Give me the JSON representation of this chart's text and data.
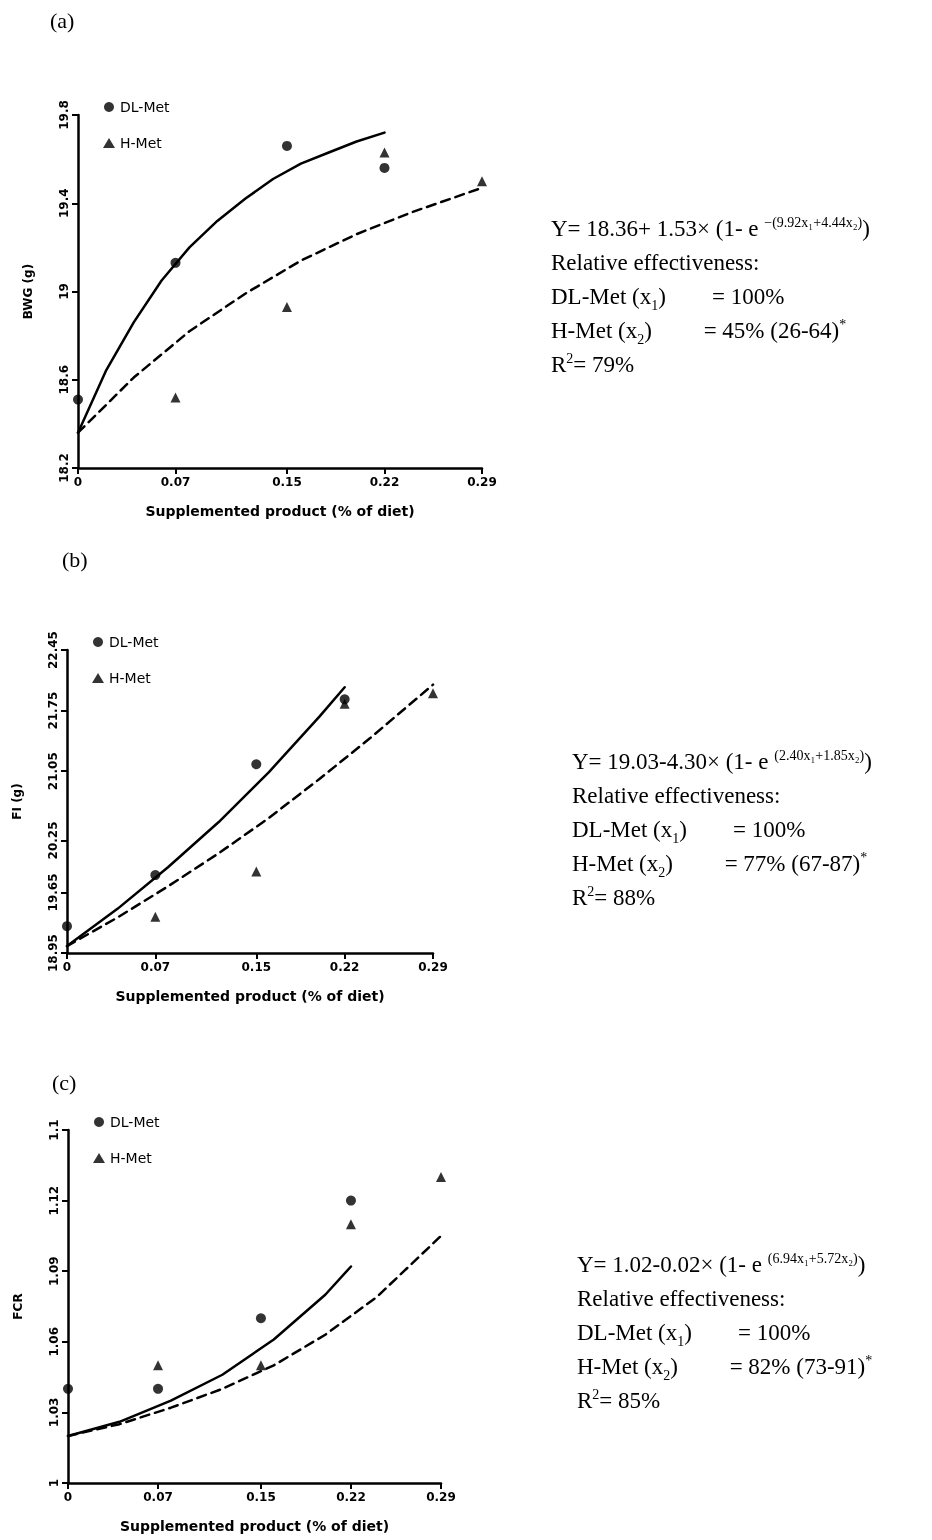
{
  "chart_data": [
    {
      "type": "scatter",
      "title": "(a)",
      "xlabel": "Supplemented product (% of diet)",
      "ylabel": "BWG (g)",
      "xlim": [
        0,
        0.29
      ],
      "xticks": [
        0,
        0.07,
        0.15,
        0.22,
        0.29
      ],
      "ylim": [
        18.2,
        19.8
      ],
      "yticks": [
        18.2,
        18.6,
        19,
        19.4,
        19.8
      ],
      "grid": false,
      "legend": "top left",
      "series": [
        {
          "name": "DL-Met",
          "marker": "circle",
          "color": "#000000",
          "x": [
            0,
            0.07,
            0.15,
            0.22
          ],
          "values": [
            18.51,
            19.13,
            19.66,
            19.56
          ]
        },
        {
          "name": "H-Met",
          "marker": "triangle",
          "color": "#000000",
          "x": [
            0.07,
            0.15,
            0.22,
            0.29
          ],
          "values": [
            18.52,
            18.93,
            19.63,
            19.5
          ]
        },
        {
          "type": "line",
          "line_style": "solid",
          "color": "#000000",
          "x": [
            0,
            0.02,
            0.04,
            0.06,
            0.08,
            0.1,
            0.12,
            0.14,
            0.16,
            0.18,
            0.2,
            0.22
          ],
          "values": [
            18.36,
            18.64,
            18.86,
            19.05,
            19.2,
            19.32,
            19.42,
            19.51,
            19.58,
            19.63,
            19.68,
            19.72
          ]
        },
        {
          "type": "line",
          "line_style": "dashed",
          "color": "#000000",
          "x": [
            0,
            0.04,
            0.08,
            0.12,
            0.16,
            0.2,
            0.24,
            0.29
          ],
          "values": [
            18.36,
            18.61,
            18.82,
            18.99,
            19.14,
            19.26,
            19.36,
            19.47
          ]
        }
      ],
      "annotations": [
        "Y= 18.36+ 1.53× (1- e $^{−(9.92x₁+4.44x₂)}$)",
        "Relative effectiveness:",
        "DL-Met (x$_{1}$)        = 100%",
        "H-Met (x$_{2}$)         = 45% (26-64)$^{*}$",
        "R$^{2}$= 79%"
      ]
    },
    {
      "type": "scatter",
      "title": "(b)",
      "xlabel": "Supplemented product (% of diet)",
      "ylabel": "FI (g)",
      "xlim": [
        0,
        0.29
      ],
      "xticks": [
        0,
        0.07,
        0.15,
        0.22,
        0.29
      ],
      "ylim": [
        18.95,
        22.45
      ],
      "yticks": [
        18.95,
        19.65,
        20.25,
        21.05,
        21.75,
        22.45
      ],
      "grid": false,
      "legend": "top left",
      "series": [
        {
          "name": "DL-Met",
          "marker": "circle",
          "color": "#000000",
          "x": [
            0,
            0.07,
            0.15,
            0.22
          ],
          "values": [
            19.26,
            19.85,
            21.13,
            21.88
          ]
        },
        {
          "name": "H-Met",
          "marker": "triangle",
          "color": "#000000",
          "x": [
            0.07,
            0.15,
            0.22,
            0.29
          ],
          "values": [
            19.37,
            19.89,
            21.83,
            21.95
          ]
        },
        {
          "type": "line",
          "line_style": "solid",
          "color": "#000000",
          "x": [
            0,
            0.04,
            0.08,
            0.12,
            0.16,
            0.2,
            0.22
          ],
          "values": [
            19.03,
            19.46,
            19.94,
            20.46,
            21.04,
            21.68,
            22.02
          ]
        },
        {
          "type": "line",
          "line_style": "dashed",
          "color": "#000000",
          "x": [
            0,
            0.04,
            0.08,
            0.12,
            0.16,
            0.2,
            0.24,
            0.29
          ],
          "values": [
            19.03,
            19.36,
            19.72,
            20.1,
            20.51,
            20.96,
            21.43,
            22.05
          ]
        }
      ],
      "annotations": [
        "Y= 19.03-4.30× (1- e $^{(2.40x₁+1.85x₂)}$)",
        "Relative effectiveness:",
        "DL-Met (x$_{1}$)        = 100%",
        "H-Met (x$_{2}$)         = 77% (67-87)$^{*}$",
        "R$^{2}$= 88%"
      ]
    },
    {
      "type": "scatter",
      "title": "(c)",
      "xlabel": "Supplemented product (% of diet)",
      "ylabel": "FCR",
      "xlim": [
        0,
        0.29
      ],
      "xticks": [
        0,
        0.07,
        0.15,
        0.22,
        0.29
      ],
      "ylim": [
        1,
        1.15
      ],
      "yticks": [
        1,
        1.03,
        1.06,
        1.09,
        1.12,
        {
          "value": 1.15,
          "label": "1.1"
        }
      ],
      "grid": false,
      "legend": "top left",
      "series": [
        {
          "name": "DL-Met",
          "marker": "circle",
          "color": "#000000",
          "x": [
            0,
            0.07,
            0.15,
            0.22
          ],
          "values": [
            1.04,
            1.04,
            1.07,
            1.12
          ]
        },
        {
          "name": "H-Met",
          "marker": "triangle",
          "color": "#000000",
          "x": [
            0.07,
            0.15,
            0.22,
            0.29
          ],
          "values": [
            1.05,
            1.05,
            1.11,
            1.13
          ]
        },
        {
          "type": "line",
          "line_style": "solid",
          "color": "#000000",
          "x": [
            0,
            0.04,
            0.08,
            0.12,
            0.16,
            0.2,
            0.22
          ],
          "values": [
            1.02,
            1.026,
            1.035,
            1.046,
            1.061,
            1.08,
            1.092
          ]
        },
        {
          "type": "line",
          "line_style": "dashed",
          "color": "#000000",
          "x": [
            0,
            0.04,
            0.08,
            0.12,
            0.16,
            0.2,
            0.24,
            0.29
          ],
          "values": [
            1.02,
            1.025,
            1.032,
            1.04,
            1.05,
            1.063,
            1.079,
            1.105
          ]
        }
      ],
      "annotations": [
        "Y= 1.02-0.02× (1- e $^{(6.94x₁+5.72x₂)}$)",
        "Relative effectiveness:",
        "DL-Met (x$_{1}$)        = 100%",
        "H-Met (x$_{2}$)         = 82% (73-91)$^{*}$",
        "R$^{2}$= 85%"
      ]
    }
  ]
}
